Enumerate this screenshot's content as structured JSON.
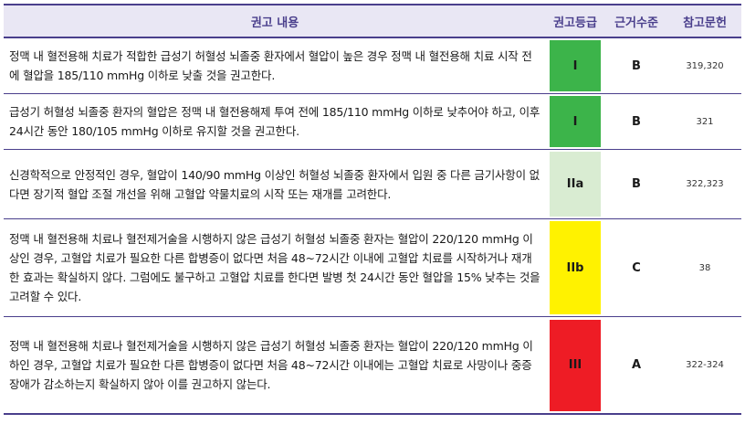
{
  "header": {
    "content": "권고 내용",
    "grade": "권고등급",
    "level": "근거수준",
    "refs": "참고문헌"
  },
  "rows": [
    {
      "text": "정맥 내 혈전용해 치료가 적합한 급성기 허혈성 뇌졸중 환자에서 혈압이 높은 경우 정맥 내 혈전용해 치료 시작 전에 혈압을 185/110 mmHg 이하로 낮출 것을 권고한다.",
      "grade": "I",
      "grade_color": "#3cb44a",
      "level": "B",
      "refs": "319,320"
    },
    {
      "text": "급성기 허혈성 뇌졸중 환자의 혈압은 정맥 내 혈전용해제 투여 전에 185/110 mmHg 이하로 낮추어야 하고, 이후 24시간 동안 180/105 mmHg 이하로 유지할 것을 권고한다.",
      "grade": "I",
      "grade_color": "#3cb44a",
      "level": "B",
      "refs": "321"
    },
    {
      "text": "신경학적으로 안정적인 경우, 혈압이 140/90 mmHg 이상인 허혈성 뇌졸중 환자에서 입원 중 다른 금기사항이 없다면 장기적 혈압 조절 개선을 위해 고혈압 약물치료의 시작 또는 재개를 고려한다.",
      "grade": "IIa",
      "grade_color": "#d9ecd2",
      "level": "B",
      "refs": "322,323"
    },
    {
      "text": "정맥 내 혈전용해 치료나 혈전제거술을 시행하지 않은 급성기 허혈성 뇌졸중 환자는 혈압이 220/120 mmHg 이상인 경우, 고혈압 치료가 필요한 다른 합병증이 없다면 처음 48~72시간 이내에 고혈압 치료를 시작하거나 재개한 효과는 확실하지 않다. 그럼에도 불구하고 고혈압 치료를 한다면 발병 첫 24시간 동안 혈압을 15% 낮추는 것을 고려할 수 있다.",
      "grade": "IIb",
      "grade_color": "#fff200",
      "level": "C",
      "refs": "38"
    },
    {
      "text": "정맥 내 혈전용해 치료나 혈전제거술을 시행하지 않은 급성기 허혈성 뇌졸중 환자는 혈압이 220/120 mmHg 이하인 경우, 고혈압 치료가 필요한 다른 합병증이 없다면 처음 48~72시간 이내에는 고혈압 치료로 사망이나 중증장애가 감소하는지 확실하지 않아 이를 권고하지 않는다.",
      "grade": "III",
      "grade_color": "#ee1c25",
      "level": "A",
      "refs": "322-324"
    }
  ]
}
